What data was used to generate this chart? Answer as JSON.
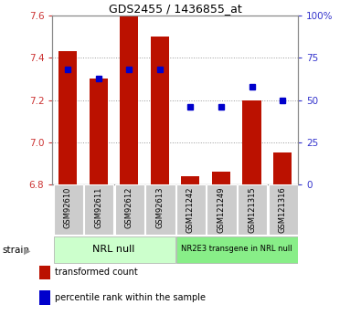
{
  "title": "GDS2455 / 1436855_at",
  "samples": [
    "GSM92610",
    "GSM92611",
    "GSM92612",
    "GSM92613",
    "GSM121242",
    "GSM121249",
    "GSM121315",
    "GSM121316"
  ],
  "transformed_count": [
    7.43,
    7.3,
    7.6,
    7.5,
    6.84,
    6.86,
    7.2,
    6.95
  ],
  "percentile_rank": [
    68,
    63,
    68,
    68,
    46,
    46,
    58,
    50
  ],
  "bar_color": "#bb1100",
  "dot_color": "#0000cc",
  "bar_bottom": 6.8,
  "ylim_left": [
    6.8,
    7.6
  ],
  "ylim_right": [
    0,
    100
  ],
  "yticks_left": [
    6.8,
    7.0,
    7.2,
    7.4,
    7.6
  ],
  "yticks_right": [
    0,
    25,
    50,
    75,
    100
  ],
  "ytick_labels_right": [
    "0",
    "25",
    "50",
    "75",
    "100%"
  ],
  "group1_label": "NRL null",
  "group2_label": "NR2E3 transgene in NRL null",
  "group1_indices": [
    0,
    1,
    2,
    3
  ],
  "group2_indices": [
    4,
    5,
    6,
    7
  ],
  "group1_color": "#ccffcc",
  "group2_color": "#88ee88",
  "strain_label": "strain",
  "legend_bar_label": "transformed count",
  "legend_dot_label": "percentile rank within the sample",
  "color_left": "#cc3333",
  "color_right": "#3333cc",
  "grid_color": "#999999",
  "bg_xticklabel": "#cccccc",
  "bar_width": 0.6
}
